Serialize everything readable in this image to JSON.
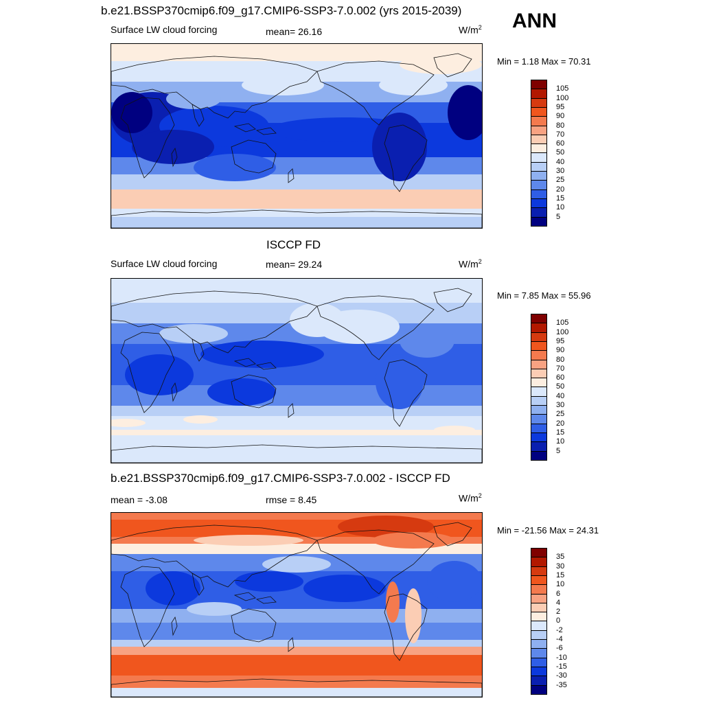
{
  "header": {
    "title": "b.e21.BSSP370cmip6.f09_g17.CMIP6-SSP3-7.0.002 (yrs 2015-2039)",
    "season": "ANN"
  },
  "panels": [
    {
      "id": "model",
      "title": "",
      "variable": "Surface LW cloud forcing",
      "stat": "mean=  26.16",
      "stat2": "",
      "units": "W/m",
      "units_exp": "2",
      "minmax": "Min =   1.18 Max =  70.31",
      "kind": "model"
    },
    {
      "id": "obs",
      "title": "ISCCP FD",
      "variable": "Surface LW cloud forcing",
      "stat": "mean=  29.24",
      "stat2": "",
      "units": "W/m",
      "units_exp": "2",
      "minmax": "Min =   7.85 Max =  55.96",
      "kind": "obs"
    },
    {
      "id": "diff",
      "title": "b.e21.BSSP370cmip6.f09_g17.CMIP6-SSP3-7.0.002 - ISCCP FD",
      "variable": "",
      "stat": "mean =  -3.08",
      "stat2": "rmse =   8.45",
      "units": "W/m",
      "units_exp": "2",
      "minmax": "Min = -21.56 Max =  24.31",
      "kind": "diff"
    }
  ],
  "colorbars": {
    "field": {
      "labels": [
        "105",
        "100",
        "95",
        "90",
        "80",
        "70",
        "60",
        "50",
        "40",
        "30",
        "25",
        "20",
        "15",
        "10",
        "5"
      ],
      "colors": [
        "#7f0000",
        "#b21800",
        "#d63a10",
        "#f0561e",
        "#f47a4e",
        "#f8a282",
        "#fbcdb4",
        "#fdeee0",
        "#dbe8fb",
        "#b8cff6",
        "#8fb0f0",
        "#5e88eb",
        "#2f5ee6",
        "#0c39dd",
        "#0a1fb0",
        "#000080"
      ]
    },
    "diff": {
      "labels": [
        "35",
        "30",
        "15",
        "10",
        "6",
        "4",
        "2",
        "0",
        "-2",
        "-4",
        "-6",
        "-10",
        "-15",
        "-30",
        "-35"
      ],
      "colors": [
        "#7f0000",
        "#b21800",
        "#d63a10",
        "#f0561e",
        "#f47a4e",
        "#f8a282",
        "#fbcdb4",
        "#fdeee0",
        "#dbe8fb",
        "#b8cff6",
        "#8fb0f0",
        "#5e88eb",
        "#2f5ee6",
        "#0c39dd",
        "#0a1fb0",
        "#000080"
      ]
    }
  }
}
